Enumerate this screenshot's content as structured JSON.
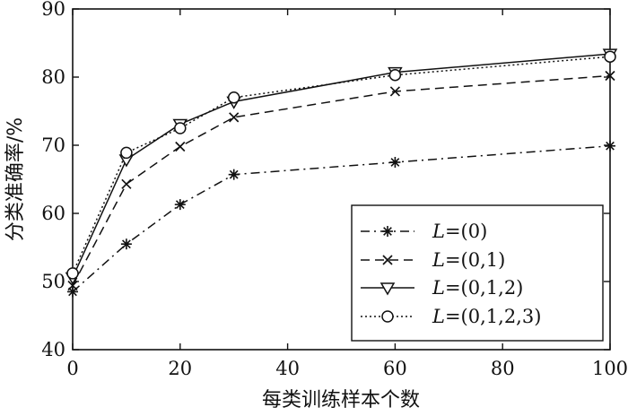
{
  "chart_data": {
    "type": "line",
    "title": "",
    "xlabel": "每类训练样本个数",
    "ylabel": "分类准确率/%",
    "xlim": [
      0,
      100
    ],
    "ylim": [
      40,
      90
    ],
    "xticks": [
      0,
      20,
      40,
      60,
      80,
      100
    ],
    "yticks": [
      40,
      50,
      60,
      70,
      80,
      90
    ],
    "grid": false,
    "legend_position": "bottom-right",
    "x": [
      0,
      10,
      20,
      30,
      60,
      100
    ],
    "series": [
      {
        "name": "L=(0)",
        "marker": "asterisk",
        "dash": "dash-dot",
        "values": [
          48.5,
          55.5,
          61.3,
          65.7,
          67.5,
          69.9
        ]
      },
      {
        "name": "L=(0,1)",
        "marker": "x",
        "dash": "dashed",
        "values": [
          49.4,
          64.3,
          69.8,
          74.1,
          77.9,
          80.2
        ]
      },
      {
        "name": "L=(0,1,2)",
        "marker": "triangle-down",
        "dash": "solid",
        "values": [
          50.6,
          67.9,
          73.1,
          76.4,
          80.7,
          83.4
        ]
      },
      {
        "name": "L=(0,1,2,3)",
        "marker": "circle",
        "dash": "dotted",
        "values": [
          51.2,
          68.9,
          72.5,
          77.0,
          80.3,
          83.0
        ]
      }
    ]
  }
}
